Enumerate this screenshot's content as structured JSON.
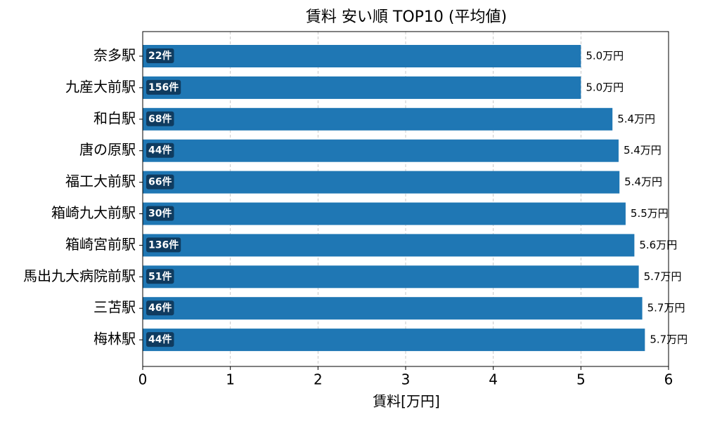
{
  "chart_data": {
    "type": "barh",
    "title": "賃料 安い順 TOP10 (平均値)",
    "x_label": "賃料[万円]",
    "categories": [
      "奈多駅",
      "九産大前駅",
      "和白駅",
      "唐の原駅",
      "福工大前駅",
      "箱崎九大前駅",
      "箱崎宮前駅",
      "馬出九大病院前駅",
      "三苫駅",
      "梅林駅"
    ],
    "values": [
      5.0,
      5.0,
      5.36,
      5.43,
      5.44,
      5.51,
      5.61,
      5.66,
      5.7,
      5.73
    ],
    "value_labels": [
      "5.0万円",
      "5.0万円",
      "5.4万円",
      "5.4万円",
      "5.4万円",
      "5.5万円",
      "5.6万円",
      "5.7万円",
      "5.7万円",
      "5.7万円"
    ],
    "count_labels": [
      "22件",
      "156件",
      "68件",
      "44件",
      "66件",
      "30件",
      "136件",
      "51件",
      "46件",
      "44件"
    ],
    "color": "#1f77b4",
    "xlim": [
      0,
      6
    ],
    "xticks": [
      0,
      1,
      2,
      3,
      4,
      5,
      6
    ],
    "grid": true
  }
}
